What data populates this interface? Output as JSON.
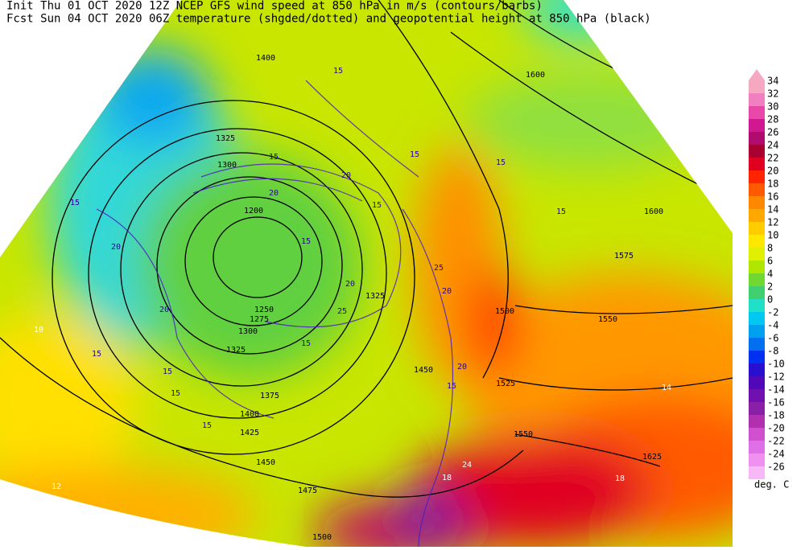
{
  "header": {
    "line1": "Init  Thu 01 OCT 2020 12Z  NCEP GFS wind speed at 850 hPa in m/s (contours/barbs)",
    "line2": "Fcst Sun 04 OCT 2020 06Z  temperature (shgded/dotted) and geopotential height at 850 hPa (black)"
  },
  "colorbar": {
    "ticks": [
      34,
      32,
      30,
      28,
      26,
      24,
      22,
      20,
      18,
      16,
      14,
      12,
      10,
      8,
      6,
      4,
      2,
      0,
      -2,
      -4,
      -6,
      -8,
      -10,
      -12,
      -14,
      -16,
      -18,
      -20,
      -22,
      -24,
      -26
    ],
    "colors": [
      "#f6a8c0",
      "#f080c0",
      "#e848a8",
      "#d01890",
      "#b00c70",
      "#a80030",
      "#e00020",
      "#ff2400",
      "#ff5a00",
      "#ff8800",
      "#ffa800",
      "#ffcc00",
      "#ffe800",
      "#e0f000",
      "#b0e600",
      "#70d830",
      "#40d070",
      "#20e0c8",
      "#00c8f0",
      "#00a0f0",
      "#0070f0",
      "#0030f0",
      "#2810d0",
      "#5008b8",
      "#7010b0",
      "#8a20a8",
      "#b030b0",
      "#d050d0",
      "#e070e8",
      "#f090f0",
      "#f8b8f8"
    ],
    "unit": "deg. C"
  },
  "map": {
    "height_labels": [
      1400,
      1325,
      1300,
      1200,
      1250,
      1275,
      1300,
      1325,
      1375,
      1400,
      1425,
      1450,
      1475,
      1500,
      1325,
      1450,
      1525,
      1550,
      1500,
      1550,
      1575,
      1600,
      1600,
      1625
    ],
    "wind_labels": [
      15,
      20,
      20,
      15,
      15,
      15,
      15,
      15,
      15,
      20,
      20,
      15,
      20,
      25,
      15,
      15,
      15,
      15,
      25,
      20,
      20,
      15,
      15
    ],
    "temperature_labels": [
      10,
      14,
      12,
      18,
      24,
      18
    ]
  }
}
